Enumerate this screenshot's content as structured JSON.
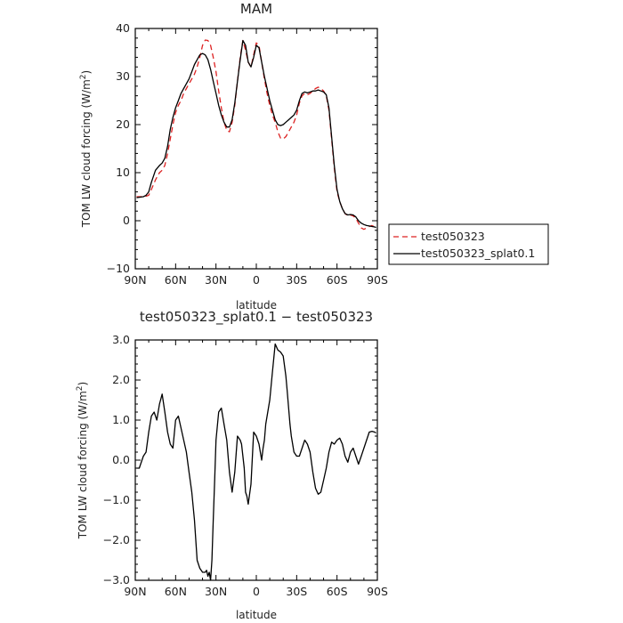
{
  "chart_data": [
    {
      "type": "line",
      "title": "MAM",
      "xlabel": "latitude",
      "ylabel": "TOM LW cloud forcing (W/m²)",
      "xlim": [
        90,
        -90
      ],
      "ylim": [
        -10,
        40
      ],
      "x_ticks": [
        90,
        60,
        30,
        0,
        -30,
        -60,
        -90
      ],
      "x_tick_labels": [
        "90N",
        "60N",
        "30N",
        "0",
        "30S",
        "60S",
        "90S"
      ],
      "y_ticks": [
        -10,
        0,
        10,
        20,
        30,
        40
      ],
      "y_tick_labels": [
        "−10",
        "0",
        "10",
        "20",
        "30",
        "40"
      ],
      "legend_position": "right",
      "series": [
        {
          "name": "test050323",
          "color": "#dd2222",
          "dash": "dashed",
          "x": [
            89,
            84,
            82,
            80,
            78,
            75,
            72,
            70,
            68,
            66,
            64,
            62,
            60,
            58,
            56,
            54,
            52,
            50,
            48,
            46,
            44,
            42,
            40,
            38,
            36,
            34,
            32,
            30,
            28,
            26,
            24,
            22,
            20,
            18,
            16,
            14,
            12,
            10,
            8,
            6,
            4,
            2,
            0,
            -2,
            -4,
            -6,
            -8,
            -10,
            -12,
            -14,
            -16,
            -18,
            -20,
            -22,
            -24,
            -26,
            -28,
            -30,
            -32,
            -34,
            -36,
            -38,
            -40,
            -42,
            -44,
            -46,
            -48,
            -50,
            -52,
            -54,
            -56,
            -58,
            -60,
            -62,
            -64,
            -66,
            -68,
            -70,
            -72,
            -74,
            -76,
            -78,
            -80,
            -82,
            -84,
            -86,
            -88,
            -89
          ],
          "y": [
            5,
            5,
            5.1,
            5.3,
            6.5,
            8.5,
            10,
            10.5,
            11.5,
            14,
            17,
            20,
            22.5,
            24,
            25,
            26.5,
            27.5,
            28.5,
            29.5,
            30.5,
            32,
            34,
            36.5,
            37.6,
            37.5,
            36.5,
            34,
            31,
            27,
            23.5,
            20.5,
            18.8,
            18.5,
            20.5,
            24,
            29,
            34,
            37.5,
            35.5,
            33,
            32,
            34.5,
            37,
            36.5,
            33,
            29.5,
            26.5,
            24,
            22,
            20.5,
            18.5,
            17.2,
            17,
            17.5,
            18.5,
            19.5,
            20.5,
            22,
            24.5,
            26,
            26.5,
            26.2,
            26.5,
            27,
            27.5,
            27.8,
            27.5,
            27,
            26,
            23,
            17,
            11,
            6,
            4,
            2.5,
            1.5,
            1,
            1.2,
            1,
            0.5,
            -0.5,
            -1.5,
            -1.8,
            -1.5,
            -1.2,
            -1,
            -1.3,
            -1.5
          ]
        },
        {
          "name": "test050323_splat0.1",
          "color": "#000000",
          "dash": "solid",
          "x": [
            89,
            84,
            82,
            80,
            78,
            75,
            72,
            70,
            68,
            66,
            64,
            62,
            60,
            58,
            56,
            54,
            52,
            50,
            48,
            46,
            44,
            42,
            40,
            38,
            36,
            34,
            32,
            30,
            28,
            26,
            24,
            22,
            20,
            18,
            16,
            14,
            12,
            10,
            8,
            6,
            4,
            2,
            0,
            -2,
            -4,
            -6,
            -8,
            -10,
            -12,
            -14,
            -16,
            -18,
            -20,
            -22,
            -24,
            -26,
            -28,
            -30,
            -32,
            -34,
            -36,
            -38,
            -40,
            -42,
            -44,
            -46,
            -48,
            -50,
            -52,
            -54,
            -56,
            -58,
            -60,
            -62,
            -64,
            -66,
            -68,
            -70,
            -72,
            -74,
            -76,
            -78,
            -80,
            -82,
            -84,
            -86,
            -88,
            -89
          ],
          "y": [
            4.8,
            5,
            5.3,
            6,
            8,
            10.5,
            11.5,
            12,
            13,
            15.5,
            19,
            21.5,
            23.5,
            25,
            26.5,
            27.5,
            28.5,
            29.5,
            31,
            32.5,
            33.5,
            34.5,
            34.8,
            34.5,
            33.5,
            31.5,
            29,
            26.5,
            24,
            22,
            20.5,
            19.5,
            19.5,
            21,
            24.5,
            29,
            33.5,
            37.5,
            36.5,
            33,
            32,
            34,
            36.5,
            36,
            33,
            30,
            27.5,
            25,
            23,
            21,
            20,
            19.8,
            20,
            20.5,
            21,
            21.5,
            22,
            23,
            25,
            26.5,
            26.8,
            26.6,
            26.8,
            27,
            27,
            27.2,
            27,
            26.8,
            26.2,
            23.5,
            17.5,
            11.5,
            6.5,
            4,
            2.5,
            1.5,
            1.2,
            1.3,
            1.2,
            0.8,
            0,
            -0.5,
            -0.8,
            -1,
            -1.1,
            -1.2,
            -1.3,
            -1.4
          ]
        }
      ]
    },
    {
      "type": "line",
      "title": "test050323_splat0.1 − test050323",
      "xlabel": "latitude",
      "ylabel": "TOM LW cloud forcing (W/m²)",
      "xlim": [
        90,
        -90
      ],
      "ylim": [
        -3,
        3
      ],
      "x_ticks": [
        90,
        60,
        30,
        0,
        -30,
        -60,
        -90
      ],
      "x_tick_labels": [
        "90N",
        "60N",
        "30N",
        "0",
        "30S",
        "60S",
        "90S"
      ],
      "y_ticks": [
        -3,
        -2,
        -1,
        0,
        1,
        2,
        3
      ],
      "y_tick_labels": [
        "−3.0",
        "−2.0",
        "−1.0",
        "0.0",
        "1.0",
        "2.0",
        "3.0"
      ],
      "series": [
        {
          "name": "",
          "color": "#000000",
          "dash": "solid",
          "x": [
            89,
            87,
            86,
            84,
            82,
            80,
            78,
            76,
            74,
            72,
            70,
            68,
            66,
            64,
            62,
            60,
            58,
            56,
            54,
            52,
            50,
            48,
            46,
            44,
            42,
            40,
            38,
            37,
            36,
            35,
            34,
            33,
            32,
            31,
            30,
            28,
            26,
            25,
            24,
            22,
            20,
            18,
            16,
            14,
            12,
            11,
            10,
            9,
            8,
            7,
            6,
            4,
            2,
            0,
            -1,
            -2,
            -3,
            -4,
            -5,
            -6,
            -7,
            -8,
            -9,
            -10,
            -12,
            -14,
            -16,
            -18,
            -20,
            -22,
            -23,
            -24,
            -25,
            -26,
            -28,
            -30,
            -32,
            -34,
            -36,
            -38,
            -40,
            -42,
            -44,
            -46,
            -48,
            -50,
            -52,
            -54,
            -56,
            -58,
            -60,
            -62,
            -64,
            -66,
            -68,
            -70,
            -72,
            -74,
            -76,
            -78,
            -80,
            -82,
            -84,
            -86,
            -88,
            -89
          ],
          "y": [
            -0.2,
            -0.2,
            -0.1,
            0.1,
            0.2,
            0.7,
            1.1,
            1.2,
            1.0,
            1.4,
            1.65,
            1.2,
            0.7,
            0.4,
            0.3,
            1.0,
            1.1,
            0.8,
            0.5,
            0.2,
            -0.3,
            -0.8,
            -1.5,
            -2.5,
            -2.7,
            -2.8,
            -2.8,
            -2.75,
            -2.9,
            -2.8,
            -3.0,
            -2.5,
            -1.5,
            -0.5,
            0.5,
            1.2,
            1.3,
            1.1,
            0.9,
            0.5,
            -0.3,
            -0.8,
            -0.3,
            0.6,
            0.5,
            0.4,
            0.1,
            -0.2,
            -0.8,
            -0.9,
            -1.1,
            -0.6,
            0.7,
            0.6,
            0.5,
            0.4,
            0.2,
            0.0,
            0.3,
            0.5,
            0.9,
            1.1,
            1.3,
            1.5,
            2.2,
            2.9,
            2.75,
            2.7,
            2.6,
            2.1,
            1.7,
            1.3,
            0.9,
            0.6,
            0.2,
            0.1,
            0.1,
            0.3,
            0.5,
            0.4,
            0.2,
            -0.3,
            -0.7,
            -0.85,
            -0.8,
            -0.5,
            -0.2,
            0.2,
            0.45,
            0.4,
            0.5,
            0.55,
            0.4,
            0.1,
            -0.05,
            0.2,
            0.3,
            0.1,
            -0.1,
            0.1,
            0.3,
            0.5,
            0.7,
            0.72,
            0.7,
            0.68
          ]
        }
      ]
    }
  ]
}
